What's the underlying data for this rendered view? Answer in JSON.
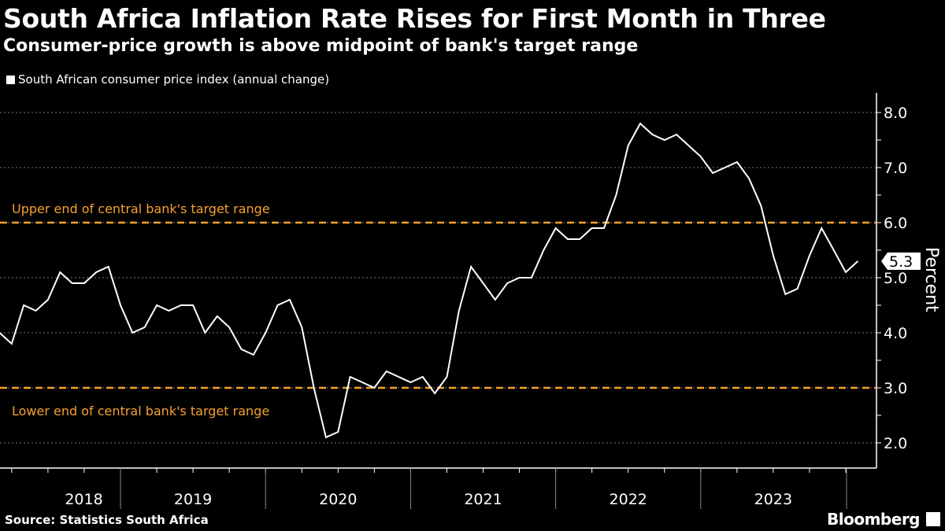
{
  "title": "South Africa Inflation Rate Rises for First Month in Three",
  "subtitle": "Consumer-price growth is above midpoint of bank's target range",
  "source": "Source: Statistics South Africa",
  "brand": "Bloomberg",
  "colors": {
    "background": "#000000",
    "line": "#ffffff",
    "reference": "#f7a130"
  },
  "chart_data": {
    "type": "line",
    "ylabel": "Percent",
    "ylim": [
      1.5,
      8.3
    ],
    "yticks": [
      "2.0",
      "3.0",
      "4.0",
      "5.0",
      "6.0",
      "7.0",
      "8.0"
    ],
    "xticks": [
      "2018",
      "2019",
      "2020",
      "2021",
      "2022",
      "2023"
    ],
    "grid": "horizontal dotted",
    "legend_placement": "top-left",
    "last_value_label": "5.3",
    "series": [
      {
        "name": "South African consumer price index (annual change)",
        "start": "2018-02",
        "end": "2024-01",
        "frequency": "monthly",
        "values": [
          4.0,
          3.8,
          4.5,
          4.4,
          4.6,
          5.1,
          4.9,
          4.9,
          5.1,
          5.2,
          4.5,
          4.0,
          4.1,
          4.5,
          4.4,
          4.5,
          4.5,
          4.0,
          4.3,
          4.1,
          3.7,
          3.6,
          4.0,
          4.5,
          4.6,
          4.1,
          3.0,
          2.1,
          2.2,
          3.2,
          3.1,
          3.0,
          3.3,
          3.2,
          3.1,
          3.2,
          2.9,
          3.2,
          4.4,
          5.2,
          4.9,
          4.6,
          4.9,
          5.0,
          5.0,
          5.5,
          5.9,
          5.7,
          5.7,
          5.9,
          5.9,
          6.5,
          7.4,
          7.8,
          7.6,
          7.5,
          7.6,
          7.4,
          7.2,
          6.9,
          7.0,
          7.1,
          6.8,
          6.3,
          5.4,
          4.7,
          4.8,
          5.4,
          5.9,
          5.5,
          5.1,
          5.3
        ]
      }
    ],
    "reference_lines": [
      {
        "value": 6.0,
        "label": "Upper end of central bank's target range"
      },
      {
        "value": 3.0,
        "label": "Lower end of central bank's target range"
      }
    ]
  }
}
